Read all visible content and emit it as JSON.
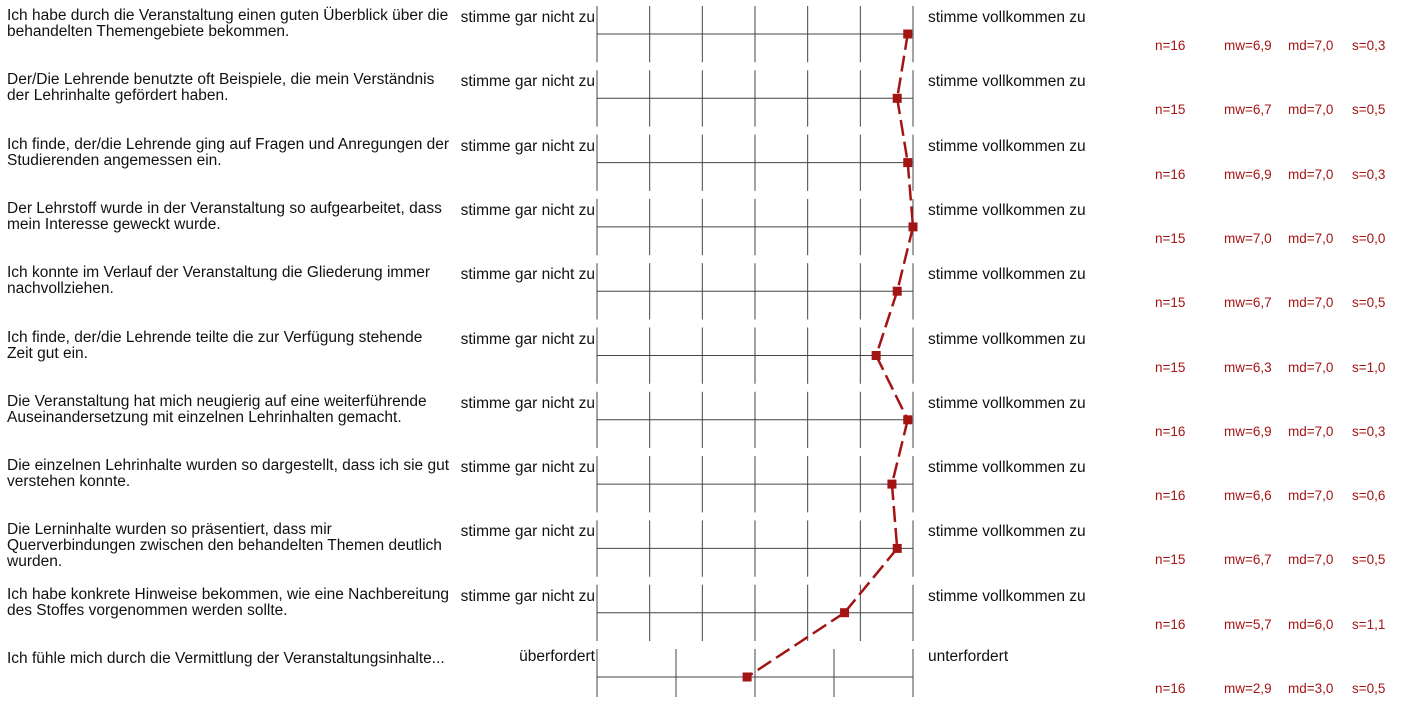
{
  "colors": {
    "profile_line": "#a31515",
    "grid": "#444444",
    "stats_text": "#a31515"
  },
  "chart_data": {
    "type": "line",
    "orientation": "horizontal-profile",
    "scale_points": 7,
    "items": [
      {
        "question": "Ich habe durch die Veranstaltung einen guten Überblick über die behandelten Themengebiete bekommen.",
        "left_label": "stimme gar nicht zu",
        "right_label": "stimme vollkommen zu",
        "scale_max": 7,
        "mean": 6.9,
        "n": "n=16",
        "mw": "mw=6,9",
        "md": "md=7,0",
        "s": "s=0,3"
      },
      {
        "question": "Der/Die Lehrende benutzte oft Beispiele, die mein Verständnis der Lehrinhalte gefördert haben.",
        "left_label": "stimme gar nicht zu",
        "right_label": "stimme vollkommen zu",
        "scale_max": 7,
        "mean": 6.7,
        "n": "n=15",
        "mw": "mw=6,7",
        "md": "md=7,0",
        "s": "s=0,5"
      },
      {
        "question": "Ich finde, der/die Lehrende ging auf Fragen und Anregungen der Studierenden angemessen ein.",
        "left_label": "stimme gar nicht zu",
        "right_label": "stimme vollkommen zu",
        "scale_max": 7,
        "mean": 6.9,
        "n": "n=16",
        "mw": "mw=6,9",
        "md": "md=7,0",
        "s": "s=0,3"
      },
      {
        "question": "Der Lehrstoff wurde in der Veranstaltung so aufgearbeitet, dass mein Interesse geweckt wurde.",
        "left_label": "stimme gar nicht zu",
        "right_label": "stimme vollkommen zu",
        "scale_max": 7,
        "mean": 7.0,
        "n": "n=15",
        "mw": "mw=7,0",
        "md": "md=7,0",
        "s": "s=0,0"
      },
      {
        "question": "Ich konnte im Verlauf der Veranstaltung die Gliederung immer nachvollziehen.",
        "left_label": "stimme gar nicht zu",
        "right_label": "stimme vollkommen zu",
        "scale_max": 7,
        "mean": 6.7,
        "n": "n=15",
        "mw": "mw=6,7",
        "md": "md=7,0",
        "s": "s=0,5"
      },
      {
        "question": "Ich finde, der/die Lehrende teilte die zur Verfügung stehende Zeit gut ein.",
        "left_label": "stimme gar nicht zu",
        "right_label": "stimme vollkommen zu",
        "scale_max": 7,
        "mean": 6.3,
        "n": "n=15",
        "mw": "mw=6,3",
        "md": "md=7,0",
        "s": "s=1,0"
      },
      {
        "question": "Die Veranstaltung hat mich neugierig auf eine weiterführende Auseinandersetzung mit einzelnen Lehrinhalten gemacht.",
        "left_label": "stimme gar nicht zu",
        "right_label": "stimme vollkommen zu",
        "scale_max": 7,
        "mean": 6.9,
        "n": "n=16",
        "mw": "mw=6,9",
        "md": "md=7,0",
        "s": "s=0,3"
      },
      {
        "question": "Die einzelnen Lehrinhalte wurden so dargestellt, dass ich sie gut verstehen konnte.",
        "left_label": "stimme gar nicht zu",
        "right_label": "stimme vollkommen zu",
        "scale_max": 7,
        "mean": 6.6,
        "n": "n=16",
        "mw": "mw=6,6",
        "md": "md=7,0",
        "s": "s=0,6"
      },
      {
        "question": "Die Lerninhalte wurden so präsentiert, dass mir Querverbindungen zwischen den behandelten Themen deutlich wurden.",
        "left_label": "stimme gar nicht zu",
        "right_label": "stimme vollkommen zu",
        "scale_max": 7,
        "mean": 6.7,
        "n": "n=15",
        "mw": "mw=6,7",
        "md": "md=7,0",
        "s": "s=0,5"
      },
      {
        "question": "Ich habe konkrete Hinweise bekommen, wie eine Nachbereitung des Stoffes vorgenommen werden sollte.",
        "left_label": "stimme gar nicht zu",
        "right_label": "stimme vollkommen zu",
        "scale_max": 7,
        "mean": 5.7,
        "n": "n=16",
        "mw": "mw=5,7",
        "md": "md=6,0",
        "s": "s=1,1"
      },
      {
        "question": "Ich fühle mich durch die Vermittlung der Veranstaltungsinhalte...",
        "left_label": "überfordert",
        "right_label": "unterfordert",
        "scale_max": 5,
        "mean": 2.9,
        "n": "n=16",
        "mw": "mw=2,9",
        "md": "md=3,0",
        "s": "s=0,5"
      }
    ]
  }
}
